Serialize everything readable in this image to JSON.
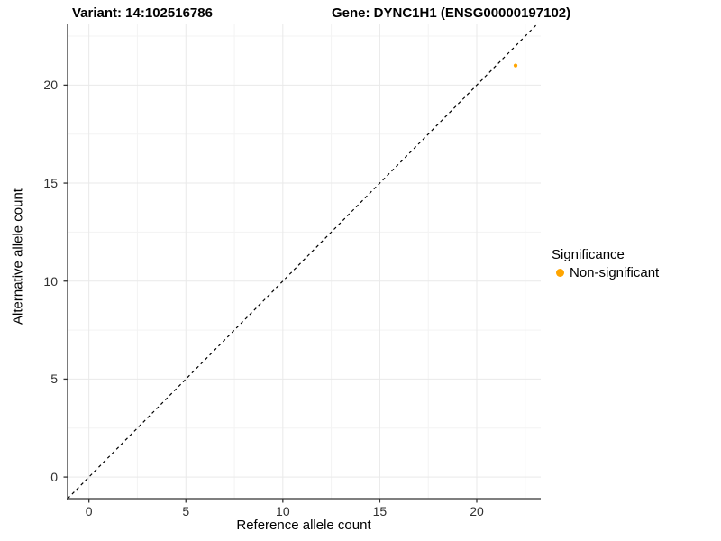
{
  "chart_data": {
    "type": "scatter",
    "title_left": "Variant: 14:102516786",
    "title_right": "Gene: DYNC1H1 (ENSG00000197102)",
    "xlabel": "Reference allele count",
    "ylabel": "Alternative allele count",
    "xlim": [
      -1.1,
      23.3
    ],
    "ylim": [
      -1.1,
      23.1
    ],
    "xticks": [
      0,
      5,
      10,
      15,
      20
    ],
    "yticks": [
      0,
      5,
      10,
      15,
      20
    ],
    "xminor": [
      2.5,
      7.5,
      12.5,
      17.5,
      22.5
    ],
    "yminor": [
      2.5,
      7.5,
      12.5,
      17.5,
      22.5
    ],
    "grid": true,
    "background": "#ffffff",
    "major_grid_color": "#e9e9e9",
    "minor_grid_color": "#f3f3f3",
    "axis_line_color": "#333333",
    "series": [
      {
        "name": "Non-significant",
        "color": "#FFA500",
        "points": [
          {
            "x": 22,
            "y": 21
          }
        ]
      }
    ],
    "reference_line": {
      "type": "identity",
      "slope": 1,
      "intercept": 0,
      "style": "dashed",
      "color": "#000000"
    },
    "legend": {
      "title": "Significance",
      "position": "right",
      "items": [
        {
          "label": "Non-significant",
          "color": "#FFA500"
        }
      ]
    }
  }
}
